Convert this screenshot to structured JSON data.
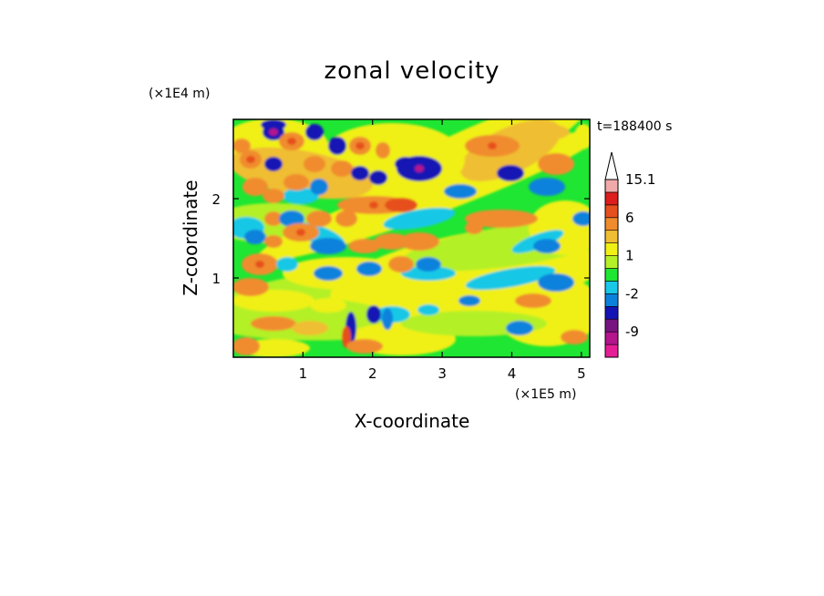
{
  "chart_data": {
    "type": "heatmap",
    "title": "zonal velocity",
    "xlabel": "X-coordinate",
    "ylabel": "Z-coordinate",
    "x_unit": "(×1E5 m)",
    "y_unit": "(×1E4 m)",
    "time_label": "t=188400 s",
    "xlim": [
      0,
      5.12
    ],
    "ylim": [
      0,
      3.0
    ],
    "x_ticks": [
      "1",
      "2",
      "3",
      "4",
      "5"
    ],
    "y_ticks": [
      "1",
      "2"
    ],
    "colorbar": {
      "levels": [
        -15,
        -12,
        -9,
        -6,
        -3,
        -2,
        -1,
        0,
        1,
        2,
        3,
        6,
        9,
        12,
        15.1
      ],
      "labels": [
        "15.1",
        "6",
        "1",
        "-2",
        "-9"
      ],
      "colors": [
        "#e61e96",
        "#b4148c",
        "#781482",
        "#1414b4",
        "#0a82dc",
        "#19c8e6",
        "#1ee632",
        "#b4f028",
        "#f0f014",
        "#f0be32",
        "#f08c2d",
        "#e6501e",
        "#dc1e1e",
        "#f0aaaa",
        "#ffffff"
      ],
      "extend": "max"
    }
  }
}
